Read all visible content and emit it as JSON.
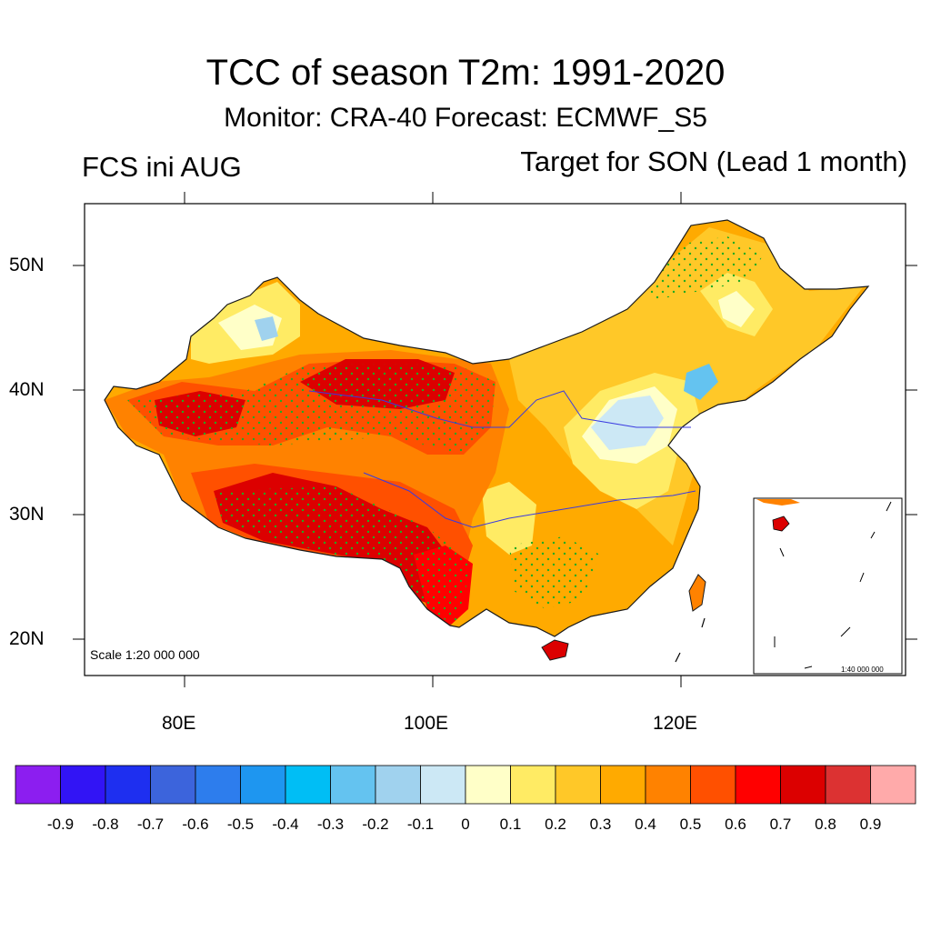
{
  "title": "TCC of season T2m: 1991-2020",
  "subtitle": "Monitor: CRA-40   Forecast: ECMWF_S5",
  "left_label": "FCS ini AUG",
  "right_label": "Target for SON (Lead 1 month)",
  "map": {
    "lat_ticks": [
      "50N",
      "40N",
      "30N",
      "20N"
    ],
    "lon_ticks": [
      "80E",
      "100E",
      "120E"
    ],
    "scale_text": "Scale 1:20 000 000",
    "inset_scale_text": "1:40 000 000"
  },
  "colorbar": {
    "labels": [
      "-0.9",
      "-0.8",
      "-0.7",
      "-0.6",
      "-0.5",
      "-0.4",
      "-0.3",
      "-0.2",
      "-0.1",
      "0",
      "0.1",
      "0.2",
      "0.3",
      "0.4",
      "0.5",
      "0.6",
      "0.7",
      "0.8",
      "0.9"
    ],
    "colors": [
      "#8c1ef0",
      "#3214f5",
      "#1e2ff0",
      "#3c64dc",
      "#2d7ded",
      "#1e96f0",
      "#00bef5",
      "#64c3f0",
      "#a0d2ee",
      "#cce8f5",
      "#ffffc8",
      "#ffeb64",
      "#ffc828",
      "#ffaa00",
      "#ff8200",
      "#ff5000",
      "#ff0000",
      "#dc0000",
      "#dc3232",
      "#ffaaaa"
    ]
  }
}
